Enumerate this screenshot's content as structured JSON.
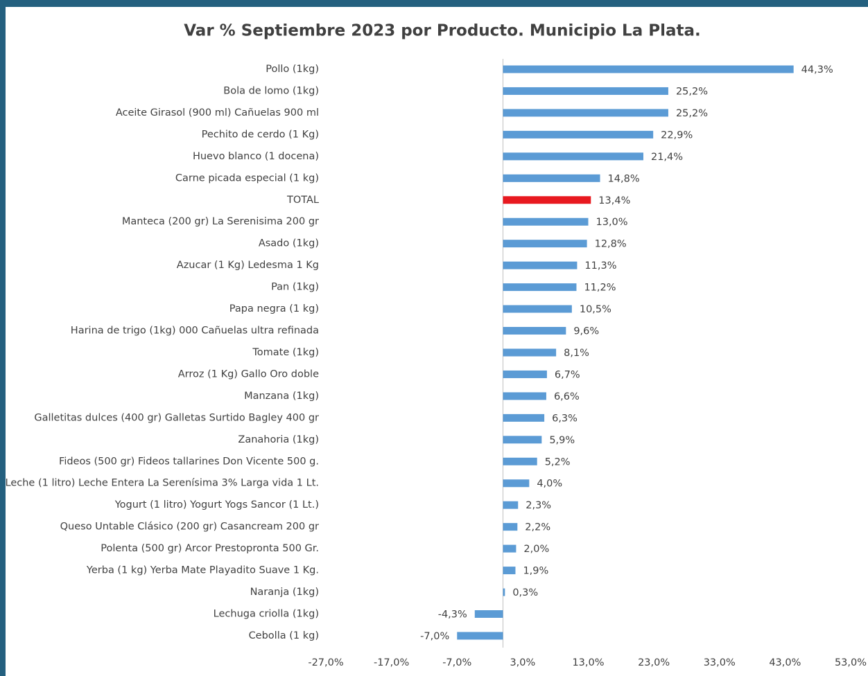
{
  "chart_data": {
    "type": "barh",
    "title": "Var % Septiembre 2023 por Producto. Municipio La Plata.",
    "categories": [
      "Pollo (1kg)",
      "Bola de lomo (1kg)",
      "Aceite Girasol (900 ml) Cañuelas 900 ml",
      "Pechito de cerdo (1 Kg)",
      "Huevo blanco (1 docena)",
      "Carne picada especial (1 kg)",
      "TOTAL",
      "Manteca (200 gr) La Serenisima 200 gr",
      "Asado (1kg)",
      "Azucar (1 Kg) Ledesma 1 Kg",
      "Pan (1kg)",
      "Papa negra (1 kg)",
      "Harina de trigo (1kg) 000 Cañuelas ultra refinada",
      "Tomate (1kg)",
      "Arroz (1 Kg) Gallo Oro doble",
      "Manzana (1kg)",
      "Galletitas dulces (400 gr) Galletas Surtido Bagley 400 gr",
      "Zanahoria (1kg)",
      "Fideos (500 gr) Fideos tallarines Don Vicente 500 g.",
      "Leche (1 litro) Leche Entera La Serenísima 3% Larga vida 1 Lt.",
      "Yogurt (1 litro) Yogurt Yogs Sancor (1 Lt.)",
      "Queso Untable Clásico (200 gr) Casancream 200 gr",
      "Polenta (500 gr) Arcor Prestopronta 500 Gr.",
      "Yerba (1 kg) Yerba Mate Playadito Suave 1 Kg.",
      "Naranja (1kg)",
      "Lechuga criolla (1kg)",
      "Cebolla (1 kg)"
    ],
    "values": [
      44.3,
      25.2,
      25.2,
      22.9,
      21.4,
      14.8,
      13.4,
      13.0,
      12.8,
      11.3,
      11.2,
      10.5,
      9.6,
      8.1,
      6.7,
      6.6,
      6.3,
      5.9,
      5.2,
      4.0,
      2.3,
      2.2,
      2.0,
      1.9,
      0.3,
      -4.3,
      -7.0
    ],
    "value_labels": [
      "44,3%",
      "25,2%",
      "25,2%",
      "22,9%",
      "21,4%",
      "14,8%",
      "13,4%",
      "13,0%",
      "12,8%",
      "11,3%",
      "11,2%",
      "10,5%",
      "9,6%",
      "8,1%",
      "6,7%",
      "6,6%",
      "6,3%",
      "5,9%",
      "5,2%",
      "4,0%",
      "2,3%",
      "2,2%",
      "2,0%",
      "1,9%",
      "0,3%",
      "-4,3%",
      "-7,0%"
    ],
    "colors": [
      "#5b9bd5",
      "#5b9bd5",
      "#5b9bd5",
      "#5b9bd5",
      "#5b9bd5",
      "#5b9bd5",
      "#e8191f",
      "#5b9bd5",
      "#5b9bd5",
      "#5b9bd5",
      "#5b9bd5",
      "#5b9bd5",
      "#5b9bd5",
      "#5b9bd5",
      "#5b9bd5",
      "#5b9bd5",
      "#5b9bd5",
      "#5b9bd5",
      "#5b9bd5",
      "#5b9bd5",
      "#5b9bd5",
      "#5b9bd5",
      "#5b9bd5",
      "#5b9bd5",
      "#5b9bd5",
      "#5b9bd5",
      "#5b9bd5"
    ],
    "xlim": [
      -27,
      53
    ],
    "xticks": [
      {
        "value": -27,
        "label": "-27,0%"
      },
      {
        "value": -17,
        "label": "-17,0%"
      },
      {
        "value": -7,
        "label": "-7,0%"
      },
      {
        "value": 3,
        "label": "3,0%"
      },
      {
        "value": 13,
        "label": "13,0%"
      },
      {
        "value": 23,
        "label": "23,0%"
      },
      {
        "value": 33,
        "label": "33,0%"
      },
      {
        "value": 43,
        "label": "43,0%"
      },
      {
        "value": 53,
        "label": "53,0%"
      }
    ],
    "grid": false
  }
}
